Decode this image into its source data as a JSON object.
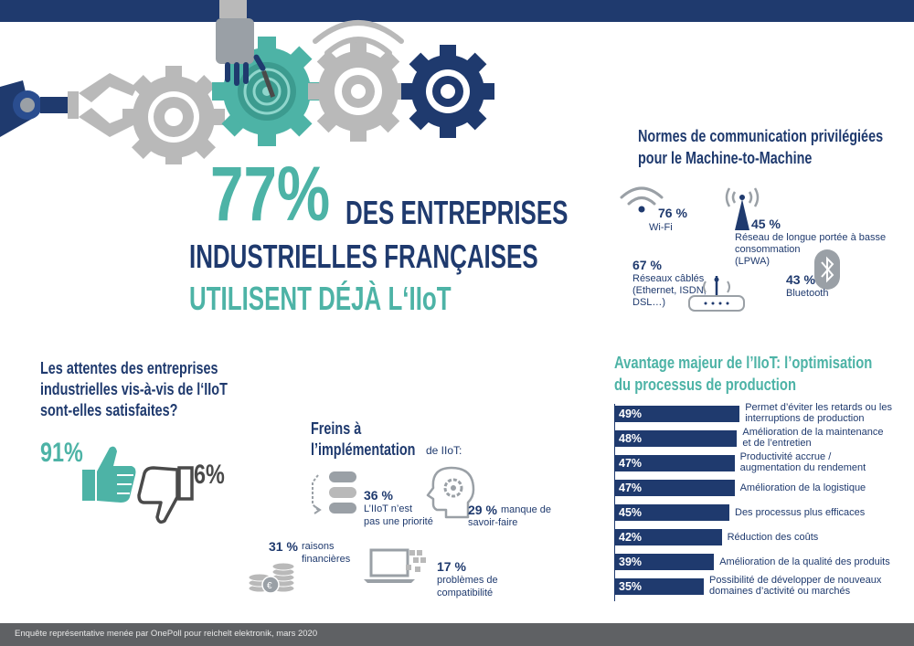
{
  "headline": {
    "pct": "77%",
    "line1": "DES ENTREPRISES",
    "line2": "INDUSTRIELLES FRANÇAISES",
    "line3": "UTILISENT DÉJÀ L‘IIoT"
  },
  "communication": {
    "title_line1": "Normes de communication privilégiées",
    "title_line2": "pour le Machine-to-Machine",
    "wifi": {
      "pct": "76 %",
      "label": "Wi-Fi"
    },
    "lpwa": {
      "pct": "45 %",
      "label_line1": "Réseau de longue portée à basse",
      "label_line2": "consommation",
      "label_line3": "(LPWA)"
    },
    "wired": {
      "pct": "67 %",
      "label_line1": "Réseaux câblés",
      "label_line2": "(Ethernet, ISDN,",
      "label_line3": "DSL…)"
    },
    "bluetooth": {
      "pct": "43 %",
      "label": "Bluetooth"
    }
  },
  "satisfaction": {
    "title_line1": "Les attentes des entreprises",
    "title_line2": "industrielles vis-à-vis de l‘IIoT",
    "title_line3": "sont-elles satisfaites?",
    "yes_pct": "91%",
    "no_pct": "6%"
  },
  "brakes": {
    "title_line1": "Freins à",
    "title_line2": "l’implémentation",
    "title_suffix": "de IIoT:",
    "priority": {
      "pct": "36 %",
      "label_line1": "L’IIoT n’est",
      "label_line2": "pas une priorité"
    },
    "knowhow": {
      "pct": "29 %",
      "label_inline": "manque de",
      "label_line2": "savoir-faire"
    },
    "financial": {
      "pct": "31 %",
      "label_inline": "raisons",
      "label_line2": "financières"
    },
    "compat": {
      "pct": "17 %",
      "label_line1": "problèmes de",
      "label_line2": "compatibilité"
    }
  },
  "advantage": {
    "title_line1": "Avantage majeur de l’IIoT: l’optimisation",
    "title_line2": "du processus de production"
  },
  "chart_data": {
    "type": "bar",
    "orientation": "horizontal",
    "categories": [
      "Permet d’éviter les retards ou les interruptions de production",
      "Amélioration de la maintenance et de l’entretien",
      "Productivité accrue / augmentation du rendement",
      "Amélioration de la logistique",
      "Des processus plus efficaces",
      "Réduction des coûts",
      "Amélioration de la qualité des produits",
      "Possibilité de développer de nouveaux domaines d’activité ou marchés"
    ],
    "label_lines": [
      [
        "Permet d’éviter les retards ou les",
        "interruptions de production"
      ],
      [
        "Amélioration de la maintenance",
        "et de l’entretien"
      ],
      [
        "Productivité accrue /",
        "augmentation du rendement"
      ],
      [
        "Amélioration de la logistique"
      ],
      [
        "Des processus plus efficaces"
      ],
      [
        "Réduction des coûts"
      ],
      [
        "Amélioration de la qualité des produits"
      ],
      [
        "Possibilité de développer de nouveaux",
        "domaines d’activité ou marchés"
      ]
    ],
    "values": [
      49,
      48,
      47,
      47,
      45,
      42,
      39,
      35
    ],
    "value_labels": [
      "49%",
      "48%",
      "47%",
      "47%",
      "45%",
      "42%",
      "39%",
      "35%"
    ],
    "unit": "%",
    "title": "Avantage majeur de l’IIoT: l’optimisation du processus de production",
    "bar_color": "#1f3a6e"
  },
  "footer": {
    "text": "Enquête représentative menée par OnePoll pour reichelt elektronik, mars 2020"
  },
  "colors": {
    "navy": "#1f3a6e",
    "teal": "#4db3a6",
    "gray": "#b9b9b9",
    "footer": "#5f6164"
  },
  "icons": [
    "robot-arm-icon",
    "gear-icon",
    "robot-hand-icon",
    "wifi-icon",
    "antenna-icon",
    "router-icon",
    "bluetooth-icon",
    "thumbs-up-icon",
    "thumbs-down-icon",
    "list-icon",
    "head-gear-icon",
    "coins-icon",
    "laptop-icon"
  ]
}
